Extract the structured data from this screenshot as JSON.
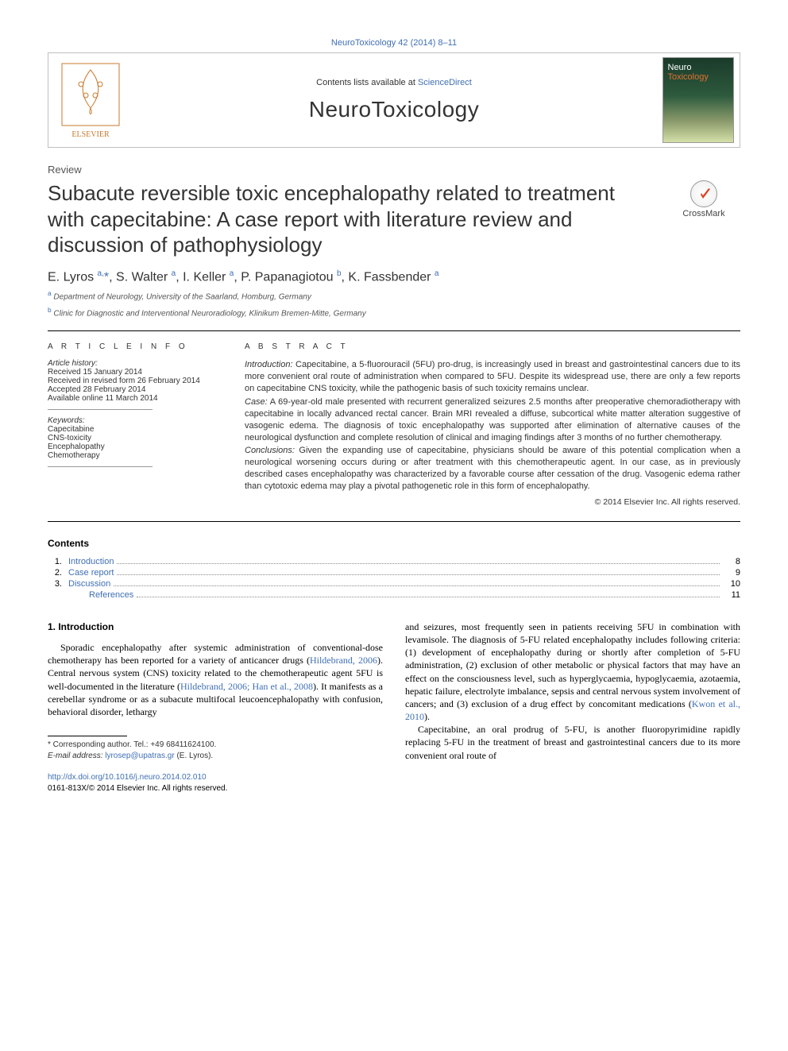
{
  "header": {
    "top_link": "NeuroToxicology 42 (2014) 8–11",
    "contents_available": "Contents lists available at ",
    "sciencedirect": "ScienceDirect",
    "journal_name": "NeuroToxicology",
    "cover_line1": "Neuro",
    "cover_line2": "Toxicology",
    "crossmark": "CrossMark"
  },
  "article": {
    "type": "Review",
    "title": "Subacute reversible toxic encephalopathy related to treatment with capecitabine: A case report with literature review and discussion of pathophysiology",
    "authors_html": "E. Lyros <sup>a,</sup>*, S. Walter <sup>a</sup>, I. Keller <sup>a</sup>, P. Papanagiotou <sup>b</sup>, K. Fassbender <sup>a</sup>",
    "affil_a": "Department of Neurology, University of the Saarland, Homburg, Germany",
    "affil_b": "Clinic for Diagnostic and Interventional Neuroradiology, Klinikum Bremen-Mitte, Germany"
  },
  "info": {
    "heading": "A R T I C L E   I N F O",
    "history_label": "Article history:",
    "received": "Received 15 January 2014",
    "revised": "Received in revised form 26 February 2014",
    "accepted": "Accepted 28 February 2014",
    "online": "Available online 11 March 2014",
    "keywords_label": "Keywords:",
    "kw1": "Capecitabine",
    "kw2": "CNS-toxicity",
    "kw3": "Encephalopathy",
    "kw4": "Chemotherapy"
  },
  "abstract": {
    "heading": "A B S T R A C T",
    "intro_label": "Introduction:",
    "intro": " Capecitabine, a 5-fluorouracil (5FU) pro-drug, is increasingly used in breast and gastrointestinal cancers due to its more convenient oral route of administration when compared to 5FU. Despite its widespread use, there are only a few reports on capecitabine CNS toxicity, while the pathogenic basis of such toxicity remains unclear.",
    "case_label": "Case:",
    "case": " A 69-year-old male presented with recurrent generalized seizures 2.5 months after preoperative chemoradiotherapy with capecitabine in locally advanced rectal cancer. Brain MRI revealed a diffuse, subcortical white matter alteration suggestive of vasogenic edema. The diagnosis of toxic encephalopathy was supported after elimination of alternative causes of the neurological dysfunction and complete resolution of clinical and imaging findings after 3 months of no further chemotherapy.",
    "concl_label": "Conclusions:",
    "concl": " Given the expanding use of capecitabine, physicians should be aware of this potential complication when a neurological worsening occurs during or after treatment with this chemotherapeutic agent. In our case, as in previously described cases encephalopathy was characterized by a favorable course after cessation of the drug. Vasogenic edema rather than cytotoxic edema may play a pivotal pathogenetic role in this form of encephalopathy.",
    "copyright": "© 2014 Elsevier Inc. All rights reserved."
  },
  "toc": {
    "heading": "Contents",
    "items": [
      {
        "num": "1.",
        "label": "Introduction",
        "page": "8"
      },
      {
        "num": "2.",
        "label": "Case report",
        "page": "9"
      },
      {
        "num": "3.",
        "label": "Discussion",
        "page": "10"
      },
      {
        "num": "",
        "label": "References",
        "page": "11"
      }
    ]
  },
  "body": {
    "sec1_head": "1. Introduction",
    "left_p1a": "Sporadic encephalopathy after systemic administration of conventional-dose chemotherapy has been reported for a variety of anticancer drugs (",
    "left_c1": "Hildebrand, 2006",
    "left_p1b": "). Central nervous system (CNS) toxicity related to the chemotherapeutic agent 5FU is well-documented in the literature (",
    "left_c2": "Hildebrand, 2006; Han et al., 2008",
    "left_p1c": "). It manifests as a cerebellar syndrome or as a subacute multifocal leucoencephalopathy with confusion, behavioral disorder, lethargy",
    "right_p1a": "and seizures, most frequently seen in patients receiving 5FU in combination with levamisole. The diagnosis of 5-FU related encephalopathy includes following criteria: (1) development of encephalopathy during or shortly after completion of 5-FU administration, (2) exclusion of other metabolic or physical factors that may have an effect on the consciousness level, such as hyperglycaemia, hypoglycaemia, azotaemia, hepatic failure, electrolyte imbalance, sepsis and central nervous system involvement of cancers; and (3) exclusion of a drug effect by concomitant medications (",
    "right_c1": "Kwon et al., 2010",
    "right_p1b": ").",
    "right_p2": "Capecitabine, an oral prodrug of 5-FU, is another fluoropyrimidine rapidly replacing 5-FU in the treatment of breast and gastrointestinal cancers due to its more convenient oral route of"
  },
  "footnote": {
    "corr": "* Corresponding author. Tel.: +49 68411624100.",
    "email_label": "E-mail address:",
    "email": "lyrosep@upatras.gr",
    "email_who": " (E. Lyros).",
    "doi": "http://dx.doi.org/10.1016/j.neuro.2014.02.010",
    "issn": "0161-813X/© 2014 Elsevier Inc. All rights reserved."
  },
  "colors": {
    "link": "#3f6fb5",
    "text": "#333333",
    "rule": "#000000",
    "border": "#bfbfbf"
  }
}
